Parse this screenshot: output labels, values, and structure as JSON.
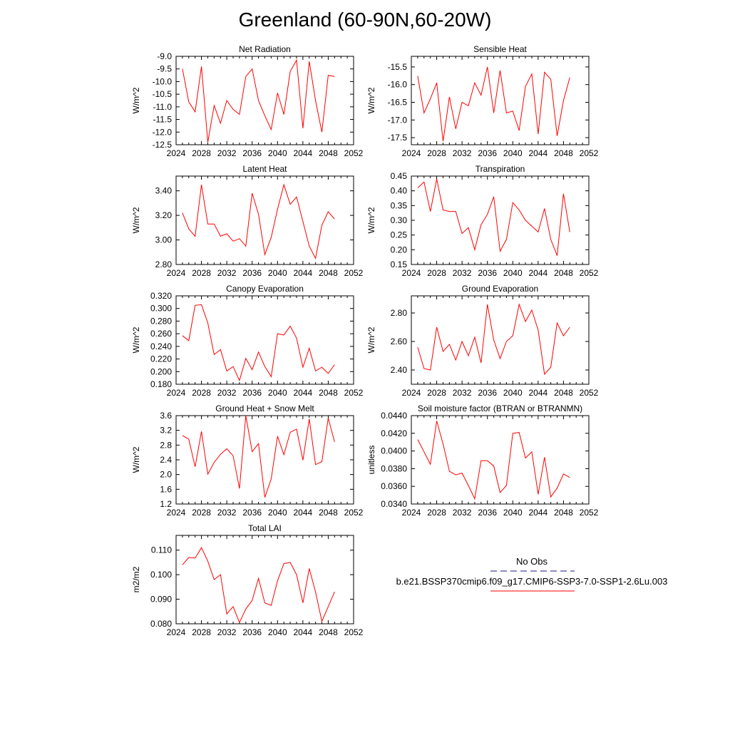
{
  "figure_title": "Greenland (60-90N,60-20W)",
  "legend": {
    "obs_label": "No Obs",
    "model_label": "b.e21.BSSP370cmip6.f09_g17.CMIP6-SSP3-7.0-SSP1-2.6Lu.003",
    "obs_color": "#1a1a8c",
    "model_color": "#ff0000"
  },
  "chart_data": [
    {
      "type": "line",
      "title": "Net Radiation",
      "ylabel": "W/m^2",
      "xlim": [
        2024,
        2052
      ],
      "xticks": [
        "2024",
        "2028",
        "2032",
        "2036",
        "2040",
        "2044",
        "2048",
        "2052"
      ],
      "ylim": [
        -12.5,
        -9.0
      ],
      "yticks": [
        "-12.5",
        "-12.0",
        "-11.5",
        "-11.0",
        "-10.5",
        "-10.0",
        "-9.5",
        "-9.0"
      ],
      "x": [
        2025,
        2026,
        2027,
        2028,
        2029,
        2030,
        2031,
        2032,
        2033,
        2034,
        2035,
        2036,
        2037,
        2038,
        2039,
        2040,
        2041,
        2042,
        2043,
        2044,
        2045,
        2046,
        2047,
        2048,
        2049
      ],
      "values": [
        -9.5,
        -10.8,
        -11.2,
        -9.4,
        -12.4,
        -10.95,
        -11.65,
        -10.75,
        -11.1,
        -11.3,
        -9.8,
        -9.5,
        -10.75,
        -11.35,
        -11.9,
        -10.45,
        -11.3,
        -9.6,
        -9.15,
        -11.85,
        -9.2,
        -10.75,
        -12.0,
        -9.75,
        -9.8
      ],
      "color": "#ff0000"
    },
    {
      "type": "line",
      "title": "Sensible Heat",
      "ylabel": "W/m^2",
      "xlim": [
        2024,
        2052
      ],
      "xticks": [
        "2024",
        "2028",
        "2032",
        "2036",
        "2040",
        "2044",
        "2048",
        "2052"
      ],
      "ylim": [
        -17.7,
        -15.2
      ],
      "yticks": [
        "-17.5",
        "-17.0",
        "-16.5",
        "-16.0",
        "-15.5"
      ],
      "x": [
        2025,
        2026,
        2027,
        2028,
        2029,
        2030,
        2031,
        2032,
        2033,
        2034,
        2035,
        2036,
        2037,
        2038,
        2039,
        2040,
        2041,
        2042,
        2043,
        2044,
        2045,
        2046,
        2047,
        2048,
        2049
      ],
      "values": [
        -15.75,
        -16.8,
        -16.4,
        -15.95,
        -17.6,
        -16.35,
        -17.25,
        -16.5,
        -16.6,
        -15.95,
        -16.3,
        -15.5,
        -16.8,
        -15.6,
        -16.8,
        -16.75,
        -17.3,
        -16.05,
        -15.7,
        -17.4,
        -15.65,
        -15.85,
        -17.45,
        -16.45,
        -15.8
      ],
      "color": "#ff0000"
    },
    {
      "type": "line",
      "title": "Latent Heat",
      "ylabel": "W/m^2",
      "xlim": [
        2024,
        2052
      ],
      "xticks": [
        "2024",
        "2028",
        "2032",
        "2036",
        "2040",
        "2044",
        "2048",
        "2052"
      ],
      "ylim": [
        2.8,
        3.52
      ],
      "yticks": [
        "2.80",
        "3.00",
        "3.20",
        "3.40"
      ],
      "x": [
        2025,
        2026,
        2027,
        2028,
        2029,
        2030,
        2031,
        2032,
        2033,
        2034,
        2035,
        2036,
        2037,
        2038,
        2039,
        2040,
        2041,
        2042,
        2043,
        2044,
        2045,
        2046,
        2047,
        2048,
        2049
      ],
      "values": [
        3.22,
        3.09,
        3.03,
        3.45,
        3.13,
        3.13,
        3.03,
        3.05,
        2.99,
        3.01,
        2.95,
        3.38,
        3.21,
        2.88,
        3.02,
        3.25,
        3.45,
        3.29,
        3.35,
        3.15,
        2.95,
        2.85,
        3.12,
        3.23,
        3.17
      ],
      "color": "#ff0000"
    },
    {
      "type": "line",
      "title": "Transpiration",
      "ylabel": "W/m^2",
      "xlim": [
        2024,
        2052
      ],
      "xticks": [
        "2024",
        "2028",
        "2032",
        "2036",
        "2040",
        "2044",
        "2048",
        "2052"
      ],
      "ylim": [
        0.15,
        0.45
      ],
      "yticks": [
        "0.15",
        "0.20",
        "0.25",
        "0.30",
        "0.35",
        "0.40",
        "0.45"
      ],
      "x": [
        2025,
        2026,
        2027,
        2028,
        2029,
        2030,
        2031,
        2032,
        2033,
        2034,
        2035,
        2036,
        2037,
        2038,
        2039,
        2040,
        2041,
        2042,
        2043,
        2044,
        2045,
        2046,
        2047,
        2048,
        2049
      ],
      "values": [
        0.41,
        0.43,
        0.33,
        0.44,
        0.335,
        0.33,
        0.33,
        0.255,
        0.275,
        0.2,
        0.285,
        0.32,
        0.38,
        0.195,
        0.235,
        0.36,
        0.335,
        0.3,
        0.28,
        0.26,
        0.34,
        0.235,
        0.18,
        0.39,
        0.26
      ],
      "color": "#ff0000"
    },
    {
      "type": "line",
      "title": "Canopy Evaporation",
      "ylabel": "W/m^2",
      "xlim": [
        2024,
        2052
      ],
      "xticks": [
        "2024",
        "2028",
        "2032",
        "2036",
        "2040",
        "2044",
        "2048",
        "2052"
      ],
      "ylim": [
        0.18,
        0.32
      ],
      "yticks": [
        "0.180",
        "0.200",
        "0.220",
        "0.240",
        "0.260",
        "0.280",
        "0.300",
        "0.320"
      ],
      "x": [
        2025,
        2026,
        2027,
        2028,
        2029,
        2030,
        2031,
        2032,
        2033,
        2034,
        2035,
        2036,
        2037,
        2038,
        2039,
        2040,
        2041,
        2042,
        2043,
        2044,
        2045,
        2046,
        2047,
        2048,
        2049
      ],
      "values": [
        0.257,
        0.249,
        0.305,
        0.306,
        0.277,
        0.227,
        0.235,
        0.201,
        0.208,
        0.186,
        0.221,
        0.203,
        0.231,
        0.208,
        0.192,
        0.26,
        0.258,
        0.272,
        0.253,
        0.207,
        0.237,
        0.201,
        0.207,
        0.197,
        0.211
      ],
      "color": "#ff0000"
    },
    {
      "type": "line",
      "title": "Ground Evaporation",
      "ylabel": "W/m^2",
      "xlim": [
        2024,
        2052
      ],
      "xticks": [
        "2024",
        "2028",
        "2032",
        "2036",
        "2040",
        "2044",
        "2048",
        "2052"
      ],
      "ylim": [
        2.3,
        2.92
      ],
      "yticks": [
        "2.40",
        "2.60",
        "2.80"
      ],
      "x": [
        2025,
        2026,
        2027,
        2028,
        2029,
        2030,
        2031,
        2032,
        2033,
        2034,
        2035,
        2036,
        2037,
        2038,
        2039,
        2040,
        2041,
        2042,
        2043,
        2044,
        2045,
        2046,
        2047,
        2048,
        2049
      ],
      "values": [
        2.56,
        2.41,
        2.4,
        2.7,
        2.53,
        2.58,
        2.47,
        2.6,
        2.5,
        2.63,
        2.45,
        2.86,
        2.61,
        2.48,
        2.6,
        2.64,
        2.86,
        2.74,
        2.82,
        2.68,
        2.37,
        2.42,
        2.73,
        2.64,
        2.7
      ],
      "color": "#ff0000"
    },
    {
      "type": "line",
      "title": "Ground Heat + Snow Melt",
      "ylabel": "W/m^2",
      "xlim": [
        2024,
        2052
      ],
      "xticks": [
        "2024",
        "2028",
        "2032",
        "2036",
        "2040",
        "2044",
        "2048",
        "2052"
      ],
      "ylim": [
        1.2,
        3.6
      ],
      "yticks": [
        "1.2",
        "1.6",
        "2.0",
        "2.4",
        "2.8",
        "3.2",
        "3.6"
      ],
      "x": [
        2025,
        2026,
        2027,
        2028,
        2029,
        2030,
        2031,
        2032,
        2033,
        2034,
        2035,
        2036,
        2037,
        2038,
        2039,
        2040,
        2041,
        2042,
        2043,
        2044,
        2045,
        2046,
        2047,
        2048,
        2049
      ],
      "values": [
        3.06,
        2.96,
        2.21,
        3.17,
        2.01,
        2.33,
        2.55,
        2.7,
        2.51,
        1.62,
        3.6,
        2.62,
        2.84,
        1.38,
        1.88,
        3.04,
        2.54,
        3.15,
        3.23,
        2.39,
        3.51,
        2.27,
        2.35,
        3.53,
        2.89
      ],
      "color": "#ff0000"
    },
    {
      "type": "line",
      "title": "Soil moisture factor (BTRAN or BTRANMN)",
      "ylabel": "unitless",
      "xlim": [
        2024,
        2052
      ],
      "xticks": [
        "2024",
        "2028",
        "2032",
        "2036",
        "2040",
        "2044",
        "2048",
        "2052"
      ],
      "ylim": [
        0.034,
        0.044
      ],
      "yticks": [
        "0.0340",
        "0.0360",
        "0.0380",
        "0.0400",
        "0.0420",
        "0.0440"
      ],
      "x": [
        2025,
        2026,
        2027,
        2028,
        2029,
        2030,
        2031,
        2032,
        2033,
        2034,
        2035,
        2036,
        2037,
        2038,
        2039,
        2040,
        2041,
        2042,
        2043,
        2044,
        2045,
        2046,
        2047,
        2048,
        2049
      ],
      "values": [
        0.0413,
        0.0399,
        0.0385,
        0.0434,
        0.0408,
        0.0377,
        0.0373,
        0.0375,
        0.0361,
        0.0346,
        0.0389,
        0.0389,
        0.0383,
        0.0353,
        0.0361,
        0.042,
        0.0421,
        0.0392,
        0.0399,
        0.0351,
        0.0393,
        0.0348,
        0.0358,
        0.0374,
        0.037
      ],
      "color": "#ff0000"
    },
    {
      "type": "line",
      "title": "Total LAI",
      "ylabel": "m2/m2",
      "xlim": [
        2024,
        2052
      ],
      "xticks": [
        "2024",
        "2028",
        "2032",
        "2036",
        "2040",
        "2044",
        "2048",
        "2052"
      ],
      "ylim": [
        0.08,
        0.116
      ],
      "yticks": [
        "0.080",
        "0.090",
        "0.100",
        "0.110"
      ],
      "x": [
        2025,
        2026,
        2027,
        2028,
        2029,
        2030,
        2031,
        2032,
        2033,
        2034,
        2035,
        2036,
        2037,
        2038,
        2039,
        2040,
        2041,
        2042,
        2043,
        2044,
        2045,
        2046,
        2047,
        2048,
        2049
      ],
      "values": [
        0.104,
        0.107,
        0.1068,
        0.111,
        0.1055,
        0.098,
        0.1,
        0.084,
        0.087,
        0.0805,
        0.086,
        0.0895,
        0.0985,
        0.0885,
        0.0875,
        0.0975,
        0.1045,
        0.105,
        0.1,
        0.0885,
        0.1025,
        0.093,
        0.081,
        0.087,
        0.093
      ],
      "color": "#ff0000"
    }
  ]
}
